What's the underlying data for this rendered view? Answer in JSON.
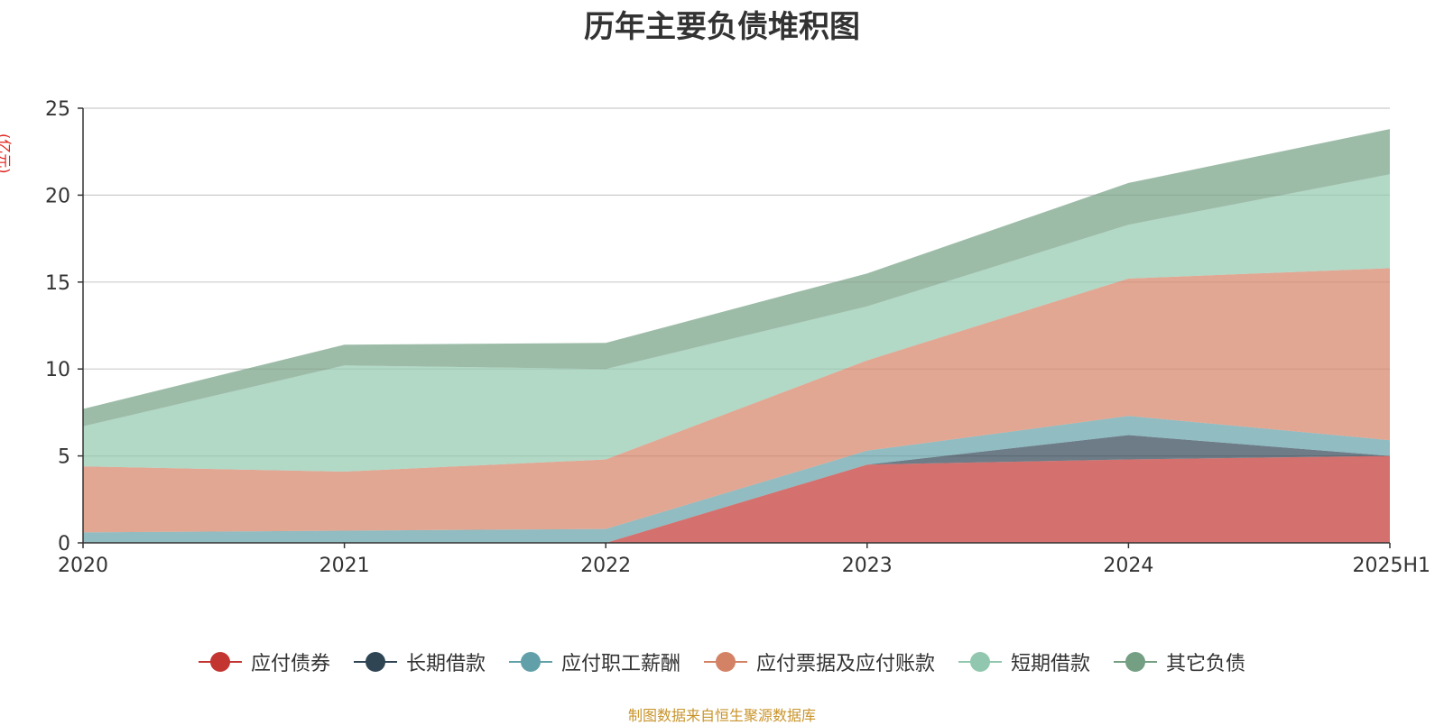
{
  "chart_data": {
    "type": "area",
    "stacked": true,
    "title": "历年主要负债堆积图",
    "unit_label": "(亿元)",
    "categories": [
      "2020",
      "2021",
      "2022",
      "2023",
      "2024",
      "2025H1"
    ],
    "ylim": [
      0,
      25
    ],
    "yticks": [
      0,
      5,
      10,
      15,
      20,
      25
    ],
    "grid": true,
    "legend_position": "bottom",
    "series": [
      {
        "name": "应付债券",
        "color": "#c23531",
        "values": [
          0,
          0,
          0,
          4.5,
          4.8,
          5.0
        ]
      },
      {
        "name": "长期借款",
        "color": "#2f4554",
        "values": [
          0,
          0,
          0,
          0,
          1.4,
          0
        ]
      },
      {
        "name": "应付职工薪酬",
        "color": "#61a0a8",
        "values": [
          0.6,
          0.7,
          0.8,
          0.8,
          1.1,
          0.9
        ]
      },
      {
        "name": "应付票据及应付账款",
        "color": "#d48265",
        "values": [
          3.8,
          3.4,
          4.0,
          5.2,
          7.9,
          9.9
        ]
      },
      {
        "name": "短期借款",
        "color": "#91c7ae",
        "values": [
          2.3,
          6.1,
          5.2,
          3.1,
          3.1,
          5.4
        ]
      },
      {
        "name": "其它负债",
        "color": "#749f83",
        "values": [
          1.0,
          1.2,
          1.5,
          1.9,
          2.4,
          2.6
        ]
      }
    ]
  },
  "source_text": "制图数据来自恒生聚源数据库"
}
